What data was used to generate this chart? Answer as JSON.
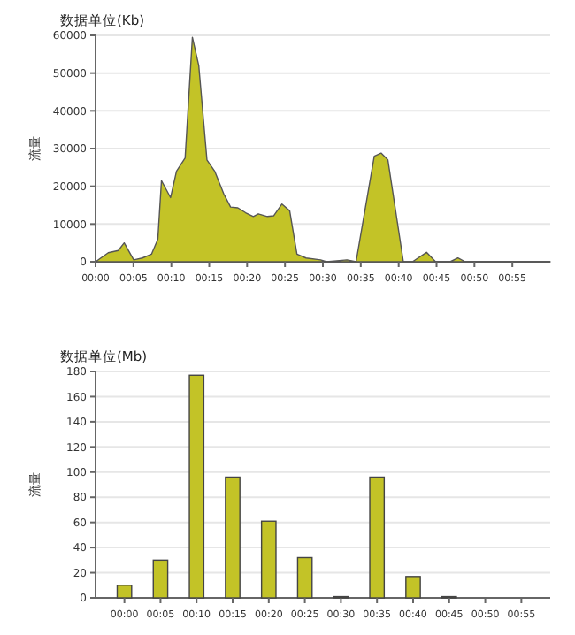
{
  "chart_data": [
    {
      "type": "area",
      "title": "数据单位(Kb)",
      "ylabel": "流量",
      "color": "#c3c327",
      "grid": "y",
      "x": [
        0,
        0.028,
        0.05,
        0.063,
        0.084,
        0.103,
        0.123,
        0.137,
        0.145,
        0.165,
        0.178,
        0.197,
        0.213,
        0.227,
        0.245,
        0.262,
        0.282,
        0.297,
        0.313,
        0.33,
        0.347,
        0.358,
        0.378,
        0.392,
        0.41,
        0.427,
        0.443,
        0.463,
        0.495,
        0.508,
        0.553,
        0.573,
        0.613,
        0.628,
        0.643,
        0.677,
        0.697,
        0.728,
        0.748,
        0.78,
        0.797,
        0.813,
        1
      ],
      "values": [
        0,
        2400,
        3000,
        5000,
        500,
        1000,
        2000,
        6000,
        21500,
        17000,
        24000,
        27500,
        59500,
        52000,
        27000,
        24000,
        18000,
        14500,
        14300,
        13000,
        12000,
        12700,
        12000,
        12200,
        15300,
        13500,
        2000,
        1000,
        500,
        0,
        500,
        0,
        28000,
        28800,
        27000,
        0,
        0,
        2500,
        0,
        0,
        1000,
        0,
        0
      ],
      "xlim": [
        0,
        1
      ],
      "xticks": [
        {
          "value": 0,
          "label": "00:00"
        },
        {
          "value": 0.0833,
          "label": "00:05"
        },
        {
          "value": 0.1667,
          "label": "00:10"
        },
        {
          "value": 0.25,
          "label": "00:15"
        },
        {
          "value": 0.3333,
          "label": "00:20"
        },
        {
          "value": 0.4167,
          "label": "00:25"
        },
        {
          "value": 0.5,
          "label": "00:30"
        },
        {
          "value": 0.5833,
          "label": "00:35"
        },
        {
          "value": 0.6667,
          "label": "00:40"
        },
        {
          "value": 0.75,
          "label": "00:45"
        },
        {
          "value": 0.8333,
          "label": "00:50"
        },
        {
          "value": 0.9167,
          "label": "00:55"
        }
      ],
      "ylim": [
        0,
        60000
      ],
      "yticks": [
        0,
        10000,
        20000,
        30000,
        40000,
        50000,
        60000
      ]
    },
    {
      "type": "bar",
      "title": "数据单位(Mb)",
      "ylabel": "流量",
      "color": "#c3c327",
      "grid": "y",
      "categories": [
        "00:00",
        "00:05",
        "00:10",
        "00:15",
        "00:20",
        "00:25",
        "00:30",
        "00:35",
        "00:40",
        "00:45",
        "00:50",
        "00:55"
      ],
      "values": [
        10,
        30,
        177,
        96,
        61,
        32,
        1,
        96,
        17,
        1,
        0,
        0
      ],
      "ylim": [
        0,
        180
      ],
      "yticks": [
        0,
        20,
        40,
        60,
        80,
        100,
        120,
        140,
        160,
        180
      ]
    }
  ]
}
